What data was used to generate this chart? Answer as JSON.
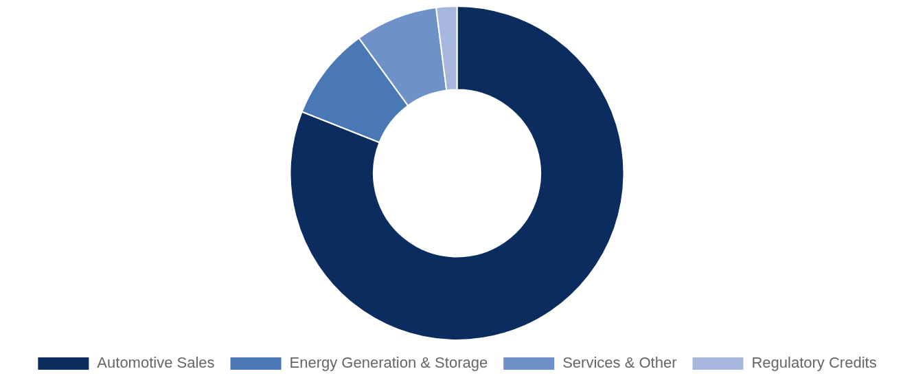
{
  "chart_data": {
    "type": "donut",
    "categories": [
      "Automotive Sales",
      "Energy Generation & Storage",
      "Services & Other",
      "Regulatory Credits"
    ],
    "values": [
      81,
      9,
      8,
      2
    ],
    "colors": [
      "#0b2c5e",
      "#4a78b5",
      "#6e92c8",
      "#a7b6dc"
    ],
    "legend": "bottom"
  }
}
